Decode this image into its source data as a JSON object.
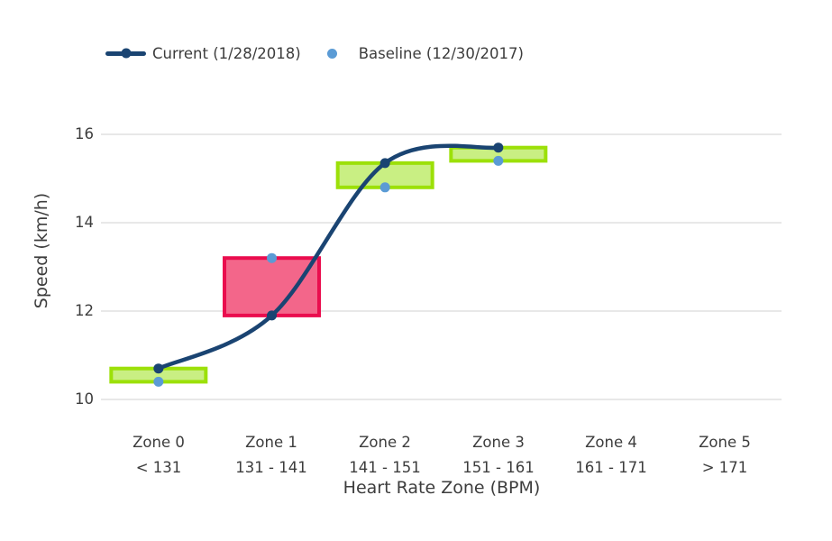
{
  "legend": {
    "current_label": "Current (1/28/2018)",
    "baseline_label": "Baseline (12/30/2017)"
  },
  "chart_data": {
    "type": "line",
    "title": "",
    "xlabel": "Heart Rate Zone (BPM)",
    "ylabel": "Speed (km/h)",
    "ylim": [
      10,
      16
    ],
    "y_ticks": [
      10,
      12,
      14,
      16
    ],
    "grid": true,
    "legend_position": "top-left",
    "zones": [
      {
        "name": "Zone 0",
        "range": "< 131"
      },
      {
        "name": "Zone 1",
        "range": "131 - 141"
      },
      {
        "name": "Zone 2",
        "range": "141 - 151"
      },
      {
        "name": "Zone 3",
        "range": "151 - 161"
      },
      {
        "name": "Zone 4",
        "range": "161 - 171"
      },
      {
        "name": "Zone 5",
        "range": "> 171"
      }
    ],
    "series": [
      {
        "name": "Current (1/28/2018)",
        "style": "spline-line-with-markers",
        "color_key": "current",
        "values": [
          10.7,
          11.9,
          15.35,
          15.7,
          null,
          null
        ]
      },
      {
        "name": "Baseline (12/30/2017)",
        "style": "markers-only",
        "color_key": "baseline",
        "values": [
          10.4,
          13.2,
          14.8,
          15.4,
          null,
          null
        ]
      }
    ],
    "change_boxes": [
      {
        "zone": 0,
        "from": 10.4,
        "to": 10.7,
        "direction": "improved"
      },
      {
        "zone": 1,
        "from": 13.2,
        "to": 11.9,
        "direction": "declined"
      },
      {
        "zone": 2,
        "from": 14.8,
        "to": 15.35,
        "direction": "improved"
      },
      {
        "zone": 3,
        "from": 15.4,
        "to": 15.7,
        "direction": "improved"
      }
    ]
  },
  "colors": {
    "current_line": "#1a4472",
    "baseline_marker": "#5b9bd5",
    "improved_fill": "#c9ef83",
    "improved_border": "#9ce009",
    "declined_fill": "#f3668a",
    "declined_border": "#ea0d4e",
    "gridline": "#e8e8e8",
    "text": "#3d3d3d"
  }
}
